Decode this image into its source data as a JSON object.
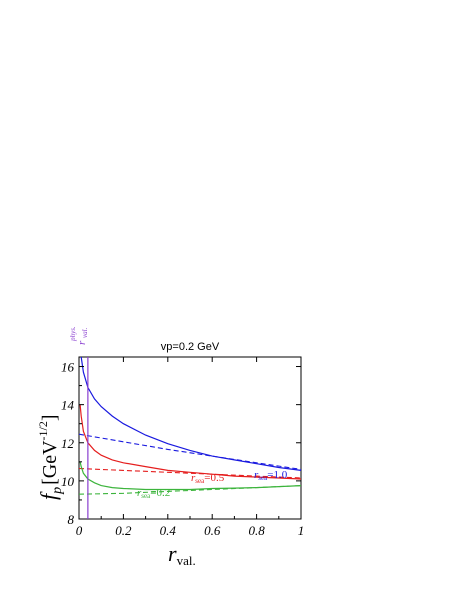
{
  "chart_data": {
    "type": "line",
    "title": "vp=0.2 GeV",
    "xlabel": "r",
    "xlabel_sub": "val.",
    "ylabel": "f",
    "ylabel_sub": "p",
    "ylabel_unit": "[GeV",
    "ylabel_unit_sup": "-1/2",
    "ylabel_unit_close": "]",
    "xlim": [
      0,
      1
    ],
    "ylim": [
      8,
      16.5
    ],
    "x_ticks": [
      "0",
      "0.2",
      "0.4",
      "0.6",
      "0.8",
      "1"
    ],
    "y_ticks": [
      "8",
      "10",
      "12",
      "14",
      "16"
    ],
    "grid": false,
    "colors": {
      "blue": "#1a1adf",
      "red": "#e51e1e",
      "green": "#3cb43c",
      "purple": "#8a3fd0"
    },
    "physical_point": {
      "x": 0.04,
      "label": "r",
      "label_sub": "val.",
      "label_sup": "phys."
    },
    "series": [
      {
        "label": "r",
        "label_sub": "sea",
        "label_value": "=1.0",
        "color": "blue",
        "solid": {
          "x": [
            0.01,
            0.02,
            0.04,
            0.07,
            0.1,
            0.15,
            0.2,
            0.3,
            0.4,
            0.5,
            0.6,
            0.7,
            0.8,
            0.9,
            1.0
          ],
          "y": [
            16.5,
            15.7,
            14.9,
            14.3,
            13.9,
            13.4,
            13.0,
            12.4,
            11.95,
            11.6,
            11.3,
            11.1,
            10.9,
            10.7,
            10.55
          ]
        },
        "dashed": {
          "x": [
            0.0,
            0.2,
            0.4,
            0.6,
            0.8,
            1.0
          ],
          "y": [
            12.45,
            12.05,
            11.65,
            11.3,
            10.95,
            10.6
          ]
        }
      },
      {
        "label": "r",
        "label_sub": "sea",
        "label_value": "=0.5",
        "color": "red",
        "solid": {
          "x": [
            0.005,
            0.01,
            0.02,
            0.04,
            0.07,
            0.1,
            0.15,
            0.2,
            0.3,
            0.4,
            0.5,
            0.6,
            0.7,
            0.8,
            0.9,
            1.0
          ],
          "y": [
            14.0,
            13.4,
            12.6,
            12.0,
            11.6,
            11.35,
            11.1,
            10.95,
            10.75,
            10.55,
            10.45,
            10.35,
            10.25,
            10.2,
            10.15,
            10.1
          ]
        },
        "dashed": {
          "x": [
            0.0,
            0.2,
            0.4,
            0.6,
            0.8,
            1.0
          ],
          "y": [
            10.65,
            10.55,
            10.45,
            10.35,
            10.25,
            10.15
          ]
        }
      },
      {
        "label": "r",
        "label_sub": "sea",
        "label_value": "=0.2",
        "color": "green",
        "solid": {
          "x": [
            0.005,
            0.01,
            0.02,
            0.04,
            0.07,
            0.1,
            0.15,
            0.2,
            0.3,
            0.4,
            0.5,
            0.6,
            0.7,
            0.8,
            0.9,
            1.0
          ],
          "y": [
            11.0,
            10.75,
            10.4,
            10.1,
            9.9,
            9.75,
            9.65,
            9.6,
            9.55,
            9.55,
            9.55,
            9.6,
            9.62,
            9.65,
            9.7,
            9.75
          ]
        },
        "dashed": {
          "x": [
            0.0,
            0.2,
            0.4,
            0.6,
            0.8,
            1.0
          ],
          "y": [
            9.3,
            9.35,
            9.45,
            9.55,
            9.65,
            9.75
          ]
        }
      }
    ]
  }
}
